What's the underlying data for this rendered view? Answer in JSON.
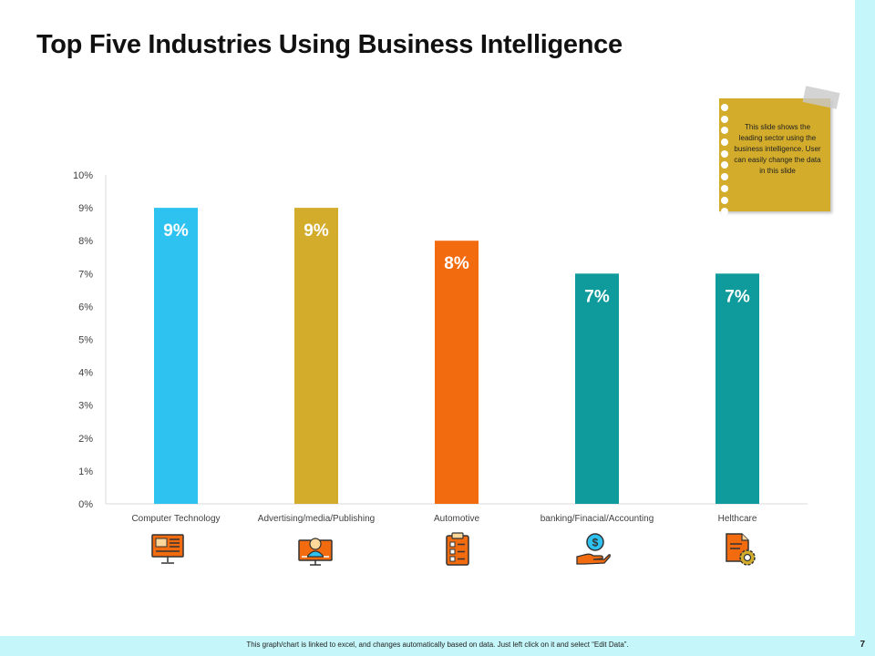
{
  "slide": {
    "title": "Top Five Industries Using Business Intelligence",
    "note": "This slide shows the leading sector using the business intelligence. User can easily change the data in this slide",
    "footer": "This graph/chart is linked to excel, and changes automatically based on data. Just left click on it and select “Edit Data”.",
    "page_number": "7"
  },
  "colors": {
    "accent_strip": "#c5f6f9",
    "note_bg": "#d3ac2b"
  },
  "chart_data": {
    "type": "bar",
    "categories": [
      "Computer Technology",
      "Advertising/media/Publishing",
      "Automotive",
      "banking/Finacial/Accounting",
      "Helthcare"
    ],
    "values": [
      9,
      9,
      8,
      7,
      7
    ],
    "data_labels": [
      "9%",
      "9%",
      "8%",
      "7%",
      "7%"
    ],
    "bar_colors": [
      "#2ec2f1",
      "#d3ac2b",
      "#f26b0f",
      "#0f9a9c",
      "#0f9a9c"
    ],
    "yticks": [
      "0%",
      "1%",
      "2%",
      "3%",
      "4%",
      "5%",
      "6%",
      "7%",
      "8%",
      "9%",
      "10%"
    ],
    "ylim": [
      0,
      10
    ],
    "grid": false,
    "legend": "none"
  },
  "icons": [
    "computer-icon",
    "presenter-icon",
    "checklist-icon",
    "money-hand-icon",
    "document-gear-icon"
  ]
}
